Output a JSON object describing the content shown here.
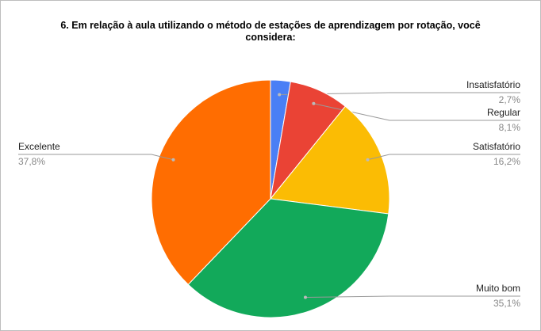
{
  "chart_data": {
    "type": "pie",
    "title": "6. Em relação à aula utilizando o método de estações de aprendizagem por rotação, você considera:",
    "categories": [
      "Insatisfatório",
      "Regular",
      "Satisfatório",
      "Muito bom",
      "Excelente"
    ],
    "values": [
      2.7,
      8.1,
      16.2,
      35.1,
      37.8
    ],
    "value_labels": [
      "2,7%",
      "8,1%",
      "16,2%",
      "35,1%",
      "37,8%"
    ],
    "colors": [
      "#4a7ff5",
      "#ea4335",
      "#fbbc04",
      "#12a95a",
      "#ff6d01"
    ]
  }
}
